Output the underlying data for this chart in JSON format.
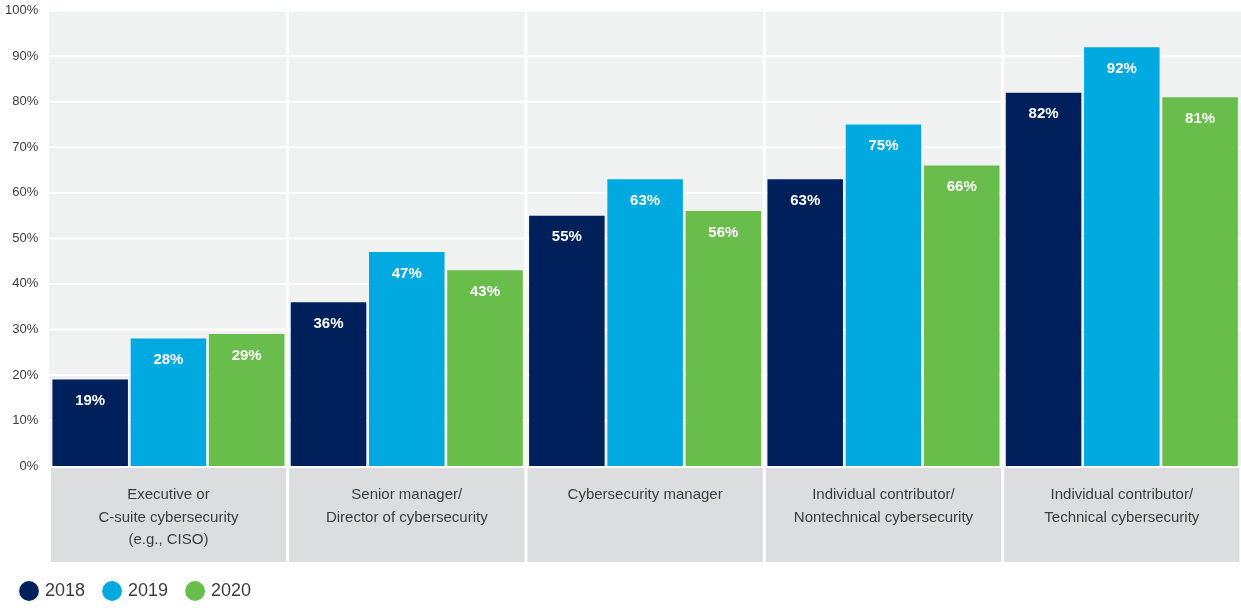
{
  "chart_data": {
    "type": "bar",
    "categories": [
      [
        "Executive or",
        "C-suite cybersecurity",
        "(e.g., CISO)"
      ],
      [
        "Senior manager/",
        "Director of cybersecurity"
      ],
      [
        "Cybersecurity manager"
      ],
      [
        "Individual contributor/",
        "Nontechnical cybersecurity"
      ],
      [
        "Individual contributor/",
        "Technical cybersecurity"
      ]
    ],
    "series": [
      {
        "name": "2018",
        "color": "#00205b",
        "values": [
          19,
          36,
          55,
          63,
          82
        ],
        "value_labels": [
          "19%",
          "36%",
          "55%",
          "63%",
          "82%"
        ]
      },
      {
        "name": "2019",
        "color": "#00a9e0",
        "values": [
          28,
          47,
          63,
          75,
          92
        ],
        "value_labels": [
          "28%",
          "47%",
          "63%",
          "75%",
          "92%"
        ]
      },
      {
        "name": "2020",
        "color": "#69be4b",
        "values": [
          29,
          43,
          56,
          66,
          81
        ],
        "value_labels": [
          "29%",
          "43%",
          "56%",
          "66%",
          "81%"
        ]
      }
    ],
    "ylim": [
      0,
      100
    ],
    "yticks": [
      {
        "value": 0,
        "label": "0%"
      },
      {
        "value": 10,
        "label": "10%"
      },
      {
        "value": 20,
        "label": "20%"
      },
      {
        "value": 30,
        "label": "30%"
      },
      {
        "value": 40,
        "label": "40%"
      },
      {
        "value": 50,
        "label": "50%"
      },
      {
        "value": 60,
        "label": "60%"
      },
      {
        "value": 70,
        "label": "70%"
      },
      {
        "value": 80,
        "label": "80%"
      },
      {
        "value": 90,
        "label": "90%"
      },
      {
        "value": 100,
        "label": "100%"
      }
    ],
    "grid": true,
    "legend": "bottom left"
  }
}
